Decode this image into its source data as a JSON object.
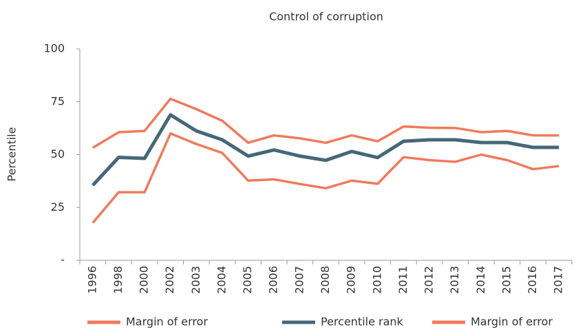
{
  "chart_data": {
    "type": "line",
    "title": "Control of corruption",
    "y_label": "Percentile",
    "categories": [
      "1996",
      "1998",
      "2000",
      "2002",
      "2003",
      "2004",
      "2005",
      "2006",
      "2007",
      "2008",
      "2009",
      "2010",
      "2011",
      "2012",
      "2013",
      "2014",
      "2015",
      "2016",
      "2017"
    ],
    "series": [
      {
        "name": "Margin of error",
        "color": "#f07a5c",
        "values": [
          53.2,
          60.6,
          61.2,
          76.4,
          71.5,
          66,
          55.6,
          59.1,
          57.7,
          55.6,
          59.1,
          56.3,
          63.3,
          62.7,
          62.6,
          60.6,
          61.2,
          59.1,
          59.1
        ]
      },
      {
        "name": "Percentile rank",
        "color": "#456878",
        "values": [
          35.5,
          48.7,
          48.2,
          68.8,
          61.2,
          57,
          49.3,
          52.2,
          49.3,
          47.3,
          51.5,
          48.6,
          56.3,
          57,
          57,
          55.7,
          55.7,
          53.4,
          53.4
        ]
      },
      {
        "name": "Margin of error",
        "color": "#f07a5c",
        "values": [
          17.7,
          32.2,
          32.2,
          60,
          55,
          50.8,
          37.7,
          38.3,
          36.1,
          34.1,
          37.7,
          36.2,
          48.8,
          47.4,
          46.6,
          50,
          47.4,
          43.1,
          44.6
        ]
      }
    ],
    "ylim": [
      0,
      100
    ],
    "yticks": [
      {
        "value": 0,
        "label": "-"
      },
      25,
      50,
      75,
      100
    ],
    "grid": false
  }
}
